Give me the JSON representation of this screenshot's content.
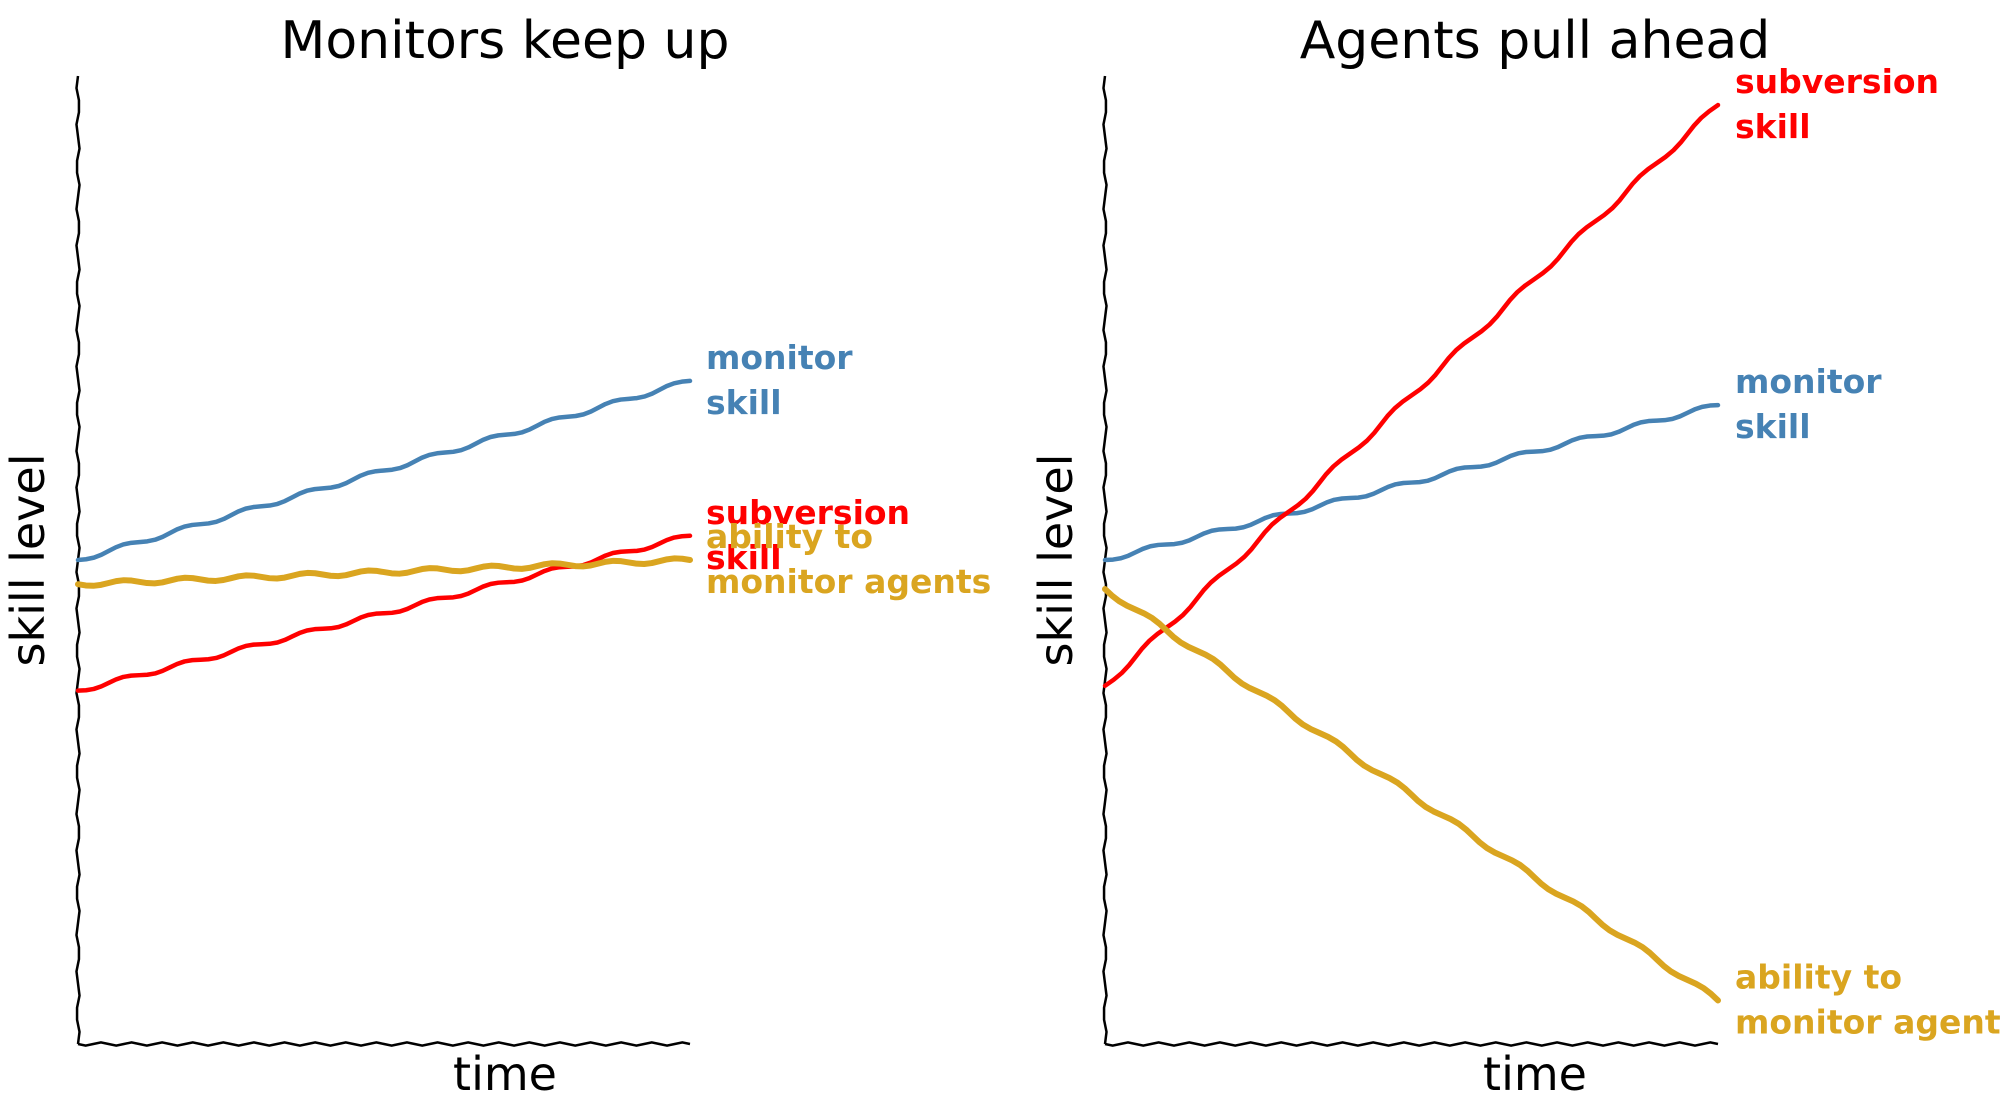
{
  "chart_data": [
    {
      "type": "line",
      "title": "Monitors keep up",
      "xlabel": "time",
      "ylabel": "skill level",
      "xlim": [
        0,
        10
      ],
      "ylim": [
        0,
        10
      ],
      "grid": false,
      "legend": "inline labels at line ends",
      "x": [
        0,
        10
      ],
      "series": [
        {
          "name": "monitor skill",
          "label_lines": [
            "monitor",
            "skill"
          ],
          "color": "#4682b4",
          "values": [
            5.0,
            6.85
          ]
        },
        {
          "name": "subversion skill",
          "label_lines": [
            "subversion",
            "skill"
          ],
          "color": "#ff0000",
          "values": [
            3.65,
            5.25
          ]
        },
        {
          "name": "ability to monitor agents",
          "label_lines": [
            "ability to",
            "monitor agents"
          ],
          "color": "#daa520",
          "values": [
            4.75,
            5.0
          ]
        }
      ]
    },
    {
      "type": "line",
      "title": "Agents pull ahead",
      "xlabel": "time",
      "ylabel": "skill level",
      "xlim": [
        0,
        10
      ],
      "ylim": [
        0,
        10
      ],
      "grid": false,
      "legend": "inline labels at line ends",
      "x": [
        0,
        10
      ],
      "series": [
        {
          "name": "monitor skill",
          "label_lines": [
            "monitor",
            "skill"
          ],
          "color": "#4682b4",
          "values": [
            5.0,
            6.6
          ]
        },
        {
          "name": "subversion skill",
          "label_lines": [
            "subversion",
            "skill"
          ],
          "color": "#ff0000",
          "values": [
            3.7,
            9.7
          ]
        },
        {
          "name": "ability to monitor agents",
          "label_lines": [
            "ability to",
            "monitor agents"
          ],
          "color": "#daa520",
          "values": [
            4.7,
            0.45
          ]
        }
      ]
    }
  ]
}
